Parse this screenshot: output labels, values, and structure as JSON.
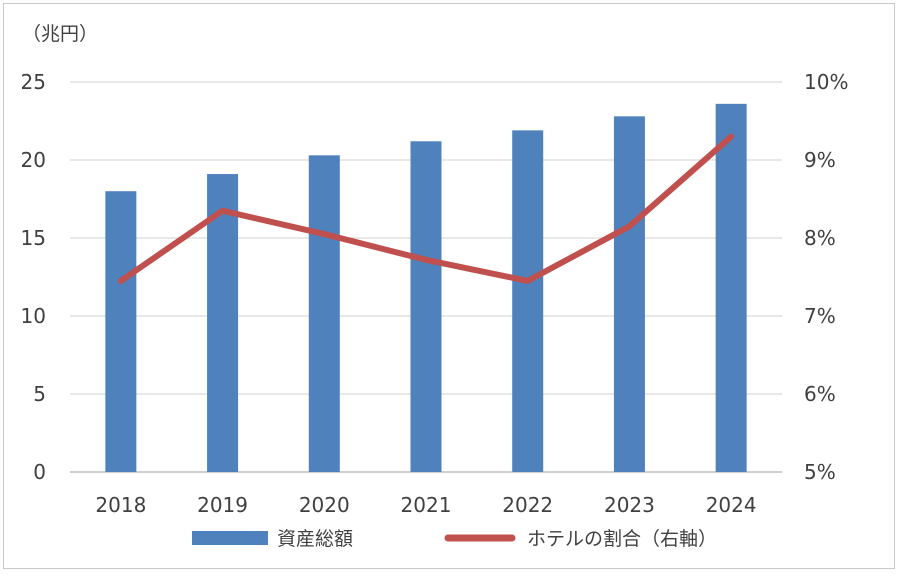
{
  "chart_data": {
    "type": "bar",
    "categories": [
      "2018",
      "2019",
      "2020",
      "2021",
      "2022",
      "2023",
      "2024"
    ],
    "series": [
      {
        "name": "資産総額",
        "type": "bar",
        "axis": "left",
        "color": "#4f81bd",
        "values": [
          18.0,
          19.1,
          20.3,
          21.2,
          21.9,
          22.8,
          23.6
        ]
      },
      {
        "name": "ホテルの割合（右軸）",
        "type": "line",
        "axis": "right",
        "color": "#c0504d",
        "values": [
          7.45,
          8.35,
          8.05,
          7.72,
          7.45,
          8.15,
          9.3
        ]
      }
    ],
    "left_axis": {
      "unit_label": "（兆円）",
      "min": 0,
      "max": 25,
      "ticks": [
        "0",
        "5",
        "10",
        "15",
        "20",
        "25"
      ]
    },
    "right_axis": {
      "min": 5,
      "max": 10,
      "ticks": [
        "5%",
        "6%",
        "7%",
        "8%",
        "9%",
        "10%"
      ]
    },
    "grid": true,
    "legend_position": "bottom"
  }
}
